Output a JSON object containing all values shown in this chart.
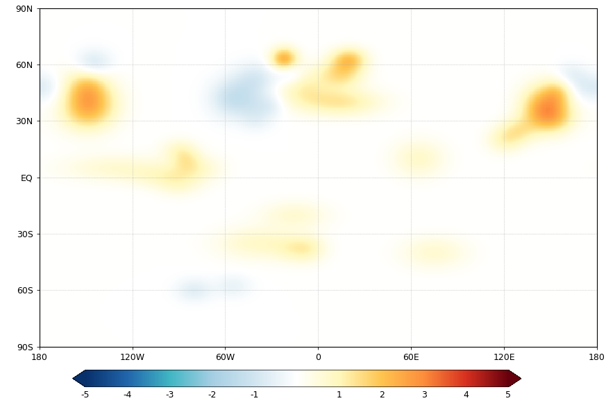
{
  "figsize": [
    8.73,
    5.81
  ],
  "dpi": 100,
  "lon_min": -180,
  "lon_max": 180,
  "lat_min": -90,
  "lat_max": 90,
  "xticks": [
    -180,
    -120,
    -60,
    0,
    60,
    120,
    180
  ],
  "xtick_labels": [
    "180",
    "120W",
    "60W",
    "0",
    "60E",
    "120E",
    "180"
  ],
  "yticks": [
    -90,
    -60,
    -30,
    0,
    30,
    60,
    90
  ],
  "ytick_labels": [
    "90S",
    "60S",
    "30S",
    "EQ",
    "30N",
    "60N",
    "90N"
  ],
  "vmin": -5,
  "vmax": 5,
  "colorbar_ticks": [
    -5,
    -4,
    -3,
    -2,
    -1,
    1,
    2,
    3,
    4,
    5
  ],
  "colorbar_ticklabels": [
    "-5",
    "-4",
    "-3",
    "-2",
    "-1",
    "1",
    "2",
    "3",
    "4",
    "5"
  ],
  "grid_lons": [
    -120,
    -60,
    0,
    60,
    120
  ],
  "grid_lats": [
    -60,
    -30,
    0,
    30,
    60
  ],
  "cmap_nodes": [
    [
      0.0,
      "#08306b"
    ],
    [
      0.1,
      "#2166ac"
    ],
    [
      0.2,
      "#41b6c4"
    ],
    [
      0.3,
      "#a6cee3"
    ],
    [
      0.4,
      "#d1e5f0"
    ],
    [
      0.5,
      "#ffffff"
    ],
    [
      0.6,
      "#fff7bc"
    ],
    [
      0.7,
      "#fec44f"
    ],
    [
      0.8,
      "#fd8d3c"
    ],
    [
      0.9,
      "#d7301f"
    ],
    [
      1.0,
      "#67000d"
    ]
  ],
  "anomalies": [
    [
      42,
      -152,
      9,
      14,
      1.6
    ],
    [
      36,
      -148,
      8,
      12,
      1.3
    ],
    [
      50,
      -148,
      6,
      8,
      0.8
    ],
    [
      38,
      145,
      8,
      10,
      2.0
    ],
    [
      32,
      152,
      6,
      10,
      1.5
    ],
    [
      45,
      155,
      5,
      7,
      1.2
    ],
    [
      40,
      15,
      5,
      18,
      1.3
    ],
    [
      55,
      15,
      5,
      10,
      1.5
    ],
    [
      63,
      20,
      4,
      8,
      1.8
    ],
    [
      63,
      -22,
      4,
      6,
      2.5
    ],
    [
      48,
      -10,
      7,
      12,
      1.0
    ],
    [
      42,
      -55,
      7,
      10,
      -1.2
    ],
    [
      52,
      -40,
      6,
      10,
      -0.9
    ],
    [
      60,
      -145,
      5,
      8,
      -1.0
    ],
    [
      48,
      -175,
      5,
      8,
      -0.7
    ],
    [
      40,
      -165,
      6,
      10,
      -0.5
    ],
    [
      5,
      -130,
      5,
      25,
      0.7
    ],
    [
      0,
      -100,
      4,
      15,
      0.6
    ],
    [
      -5,
      -90,
      4,
      10,
      0.5
    ],
    [
      5,
      -80,
      5,
      12,
      0.8
    ],
    [
      -35,
      -40,
      6,
      18,
      0.8
    ],
    [
      -20,
      -15,
      5,
      15,
      0.7
    ],
    [
      -40,
      75,
      6,
      15,
      0.7
    ],
    [
      10,
      65,
      7,
      12,
      0.8
    ],
    [
      -38,
      -15,
      5,
      10,
      0.7
    ],
    [
      -38,
      -5,
      5,
      8,
      0.6
    ],
    [
      55,
      -18,
      4,
      6,
      -0.8
    ],
    [
      38,
      -40,
      5,
      8,
      -0.5
    ],
    [
      30,
      -40,
      4,
      7,
      -0.4
    ],
    [
      38,
      -30,
      4,
      6,
      -0.5
    ],
    [
      48,
      170,
      5,
      8,
      -0.6
    ],
    [
      55,
      163,
      4,
      7,
      -0.5
    ],
    [
      -60,
      -80,
      4,
      8,
      -0.7
    ],
    [
      -58,
      -55,
      4,
      8,
      -0.5
    ],
    [
      25,
      130,
      5,
      8,
      1.0
    ],
    [
      20,
      120,
      5,
      8,
      0.9
    ],
    [
      15,
      -90,
      4,
      8,
      0.7
    ],
    [
      10,
      -85,
      4,
      6,
      0.6
    ]
  ]
}
